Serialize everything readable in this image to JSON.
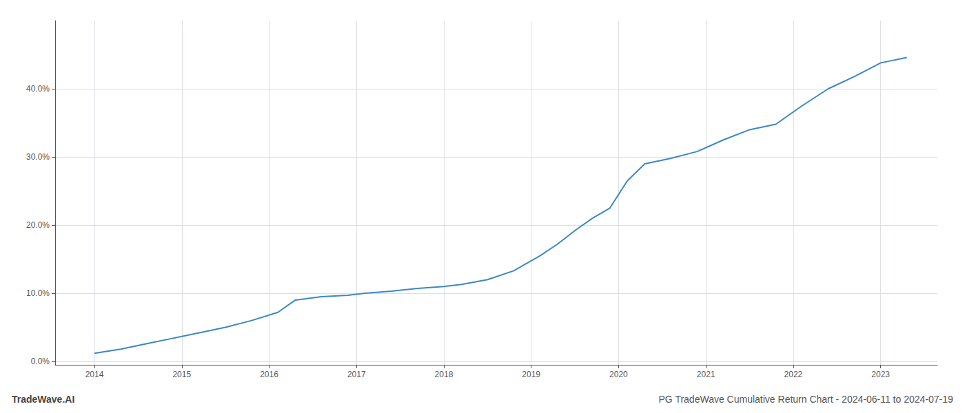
{
  "chart_data": {
    "type": "line",
    "title": "PG TradeWave Cumulative Return Chart - 2024-06-11 to 2024-07-19",
    "annotations": [
      "TradeWave.AI"
    ],
    "x": [
      2014.0,
      2014.3,
      2014.6,
      2014.9,
      2015.2,
      2015.5,
      2015.8,
      2016.1,
      2016.3,
      2016.6,
      2016.9,
      2017.1,
      2017.4,
      2017.7,
      2018.0,
      2018.2,
      2018.5,
      2018.8,
      2019.1,
      2019.3,
      2019.5,
      2019.7,
      2019.9,
      2020.1,
      2020.3,
      2020.6,
      2020.9,
      2021.2,
      2021.5,
      2021.8,
      2022.1,
      2022.4,
      2022.7,
      2023.0,
      2023.3
    ],
    "values": [
      0.012,
      0.018,
      0.026,
      0.034,
      0.042,
      0.05,
      0.06,
      0.072,
      0.09,
      0.095,
      0.097,
      0.1,
      0.103,
      0.107,
      0.11,
      0.113,
      0.12,
      0.133,
      0.155,
      0.172,
      0.192,
      0.21,
      0.225,
      0.265,
      0.29,
      0.298,
      0.308,
      0.325,
      0.34,
      0.348,
      0.375,
      0.4,
      0.418,
      0.438,
      0.446
    ],
    "color": "#3a87c8",
    "xlim": [
      2013.55,
      2023.65
    ],
    "ylim": [
      -0.005,
      0.5
    ],
    "xticks": [
      2014,
      2015,
      2016,
      2017,
      2018,
      2019,
      2020,
      2021,
      2022,
      2023
    ],
    "yticks": [
      {
        "value": 0.0,
        "label": "0.0%"
      },
      {
        "value": 0.1,
        "label": "10.0%"
      },
      {
        "value": 0.2,
        "label": "20.0%"
      },
      {
        "value": 0.3,
        "label": "30.0%"
      },
      {
        "value": 0.4,
        "label": "40.0%"
      }
    ],
    "grid": true
  }
}
